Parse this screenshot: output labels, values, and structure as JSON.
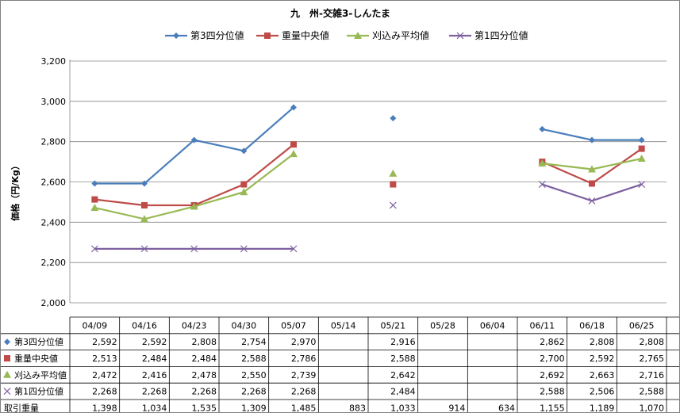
{
  "chart_data": {
    "type": "line",
    "title": "九　州-交雑3-しんたま",
    "ylabel": "価格（円/Kg）",
    "ylim": [
      2000,
      3200
    ],
    "yticks": [
      "2,000",
      "2,200",
      "2,400",
      "2,600",
      "2,800",
      "3,000",
      "3,200"
    ],
    "yticks_values": [
      2000,
      2200,
      2400,
      2600,
      2800,
      3000,
      3200
    ],
    "grid": true,
    "legend_position": "top",
    "categories": [
      "04/09",
      "04/16",
      "04/23",
      "04/30",
      "05/07",
      "05/14",
      "05/21",
      "05/28",
      "06/04",
      "06/11",
      "06/18",
      "06/25"
    ],
    "series": [
      {
        "name": "第3四分位値",
        "color": "#4a7ebb",
        "marker": "diamond",
        "values": [
          2592,
          2592,
          2808,
          2754,
          2970,
          null,
          2916,
          null,
          null,
          2862,
          2808,
          2808
        ],
        "labels": [
          "2,592",
          "2,592",
          "2,808",
          "2,754",
          "2,970",
          "",
          "2,916",
          "",
          "",
          "2,862",
          "2,808",
          "2,808"
        ]
      },
      {
        "name": "重量中央値",
        "color": "#be4b48",
        "marker": "square",
        "values": [
          2513,
          2484,
          2484,
          2588,
          2786,
          null,
          2588,
          null,
          null,
          2700,
          2592,
          2765
        ],
        "labels": [
          "2,513",
          "2,484",
          "2,484",
          "2,588",
          "2,786",
          "",
          "2,588",
          "",
          "",
          "2,700",
          "2,592",
          "2,765"
        ]
      },
      {
        "name": "刈込み平均値",
        "color": "#98b954",
        "marker": "triangle",
        "values": [
          2472,
          2416,
          2478,
          2550,
          2739,
          null,
          2642,
          null,
          null,
          2692,
          2663,
          2716
        ],
        "labels": [
          "2,472",
          "2,416",
          "2,478",
          "2,550",
          "2,739",
          "",
          "2,642",
          "",
          "",
          "2,692",
          "2,663",
          "2,716"
        ]
      },
      {
        "name": "第1四分位値",
        "color": "#7d60a0",
        "marker": "x",
        "values": [
          2268,
          2268,
          2268,
          2268,
          2268,
          null,
          2484,
          null,
          null,
          2588,
          2506,
          2588
        ],
        "labels": [
          "2,268",
          "2,268",
          "2,268",
          "2,268",
          "2,268",
          "",
          "2,484",
          "",
          "",
          "2,588",
          "2,506",
          "2,588"
        ]
      }
    ],
    "volume": {
      "name": "取引重量",
      "labels": [
        "1,398",
        "1,034",
        "1,535",
        "1,309",
        "1,485",
        "883",
        "1,033",
        "914",
        "634",
        "1,155",
        "1,189",
        "1,070"
      ]
    }
  }
}
